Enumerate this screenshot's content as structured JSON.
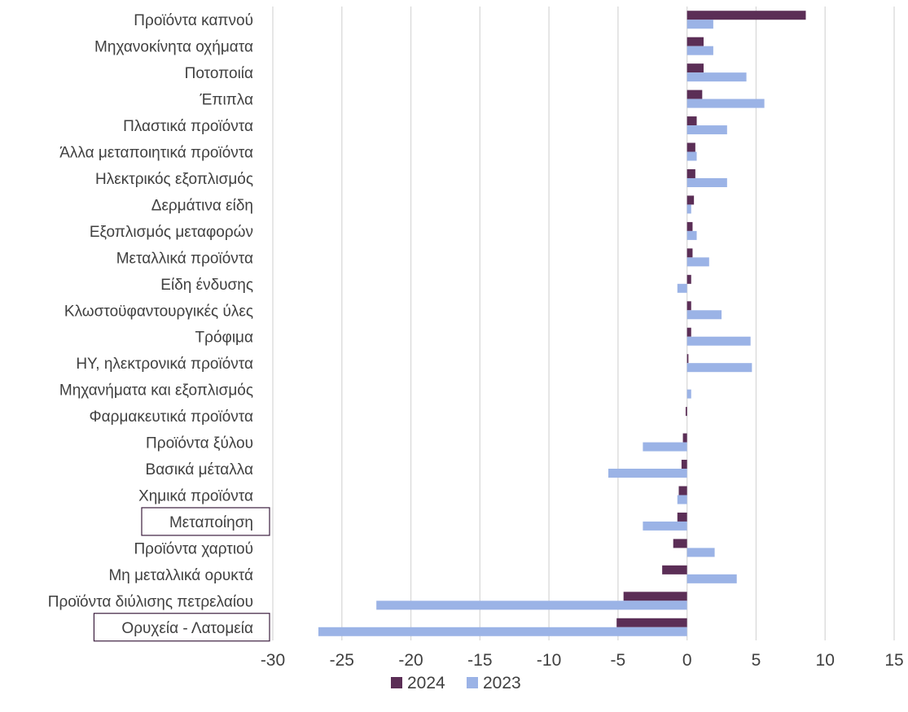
{
  "chart_data": {
    "type": "bar",
    "orientation": "horizontal",
    "categories": [
      "Προϊόντα καπνού",
      "Μηχανοκίνητα οχήματα",
      "Ποτοποιία",
      "Έπιπλα",
      "Πλαστικά προϊόντα",
      "Άλλα μεταποιητικά προϊόντα",
      "Ηλεκτρικός εξοπλισμός",
      "Δερμάτινα είδη",
      "Εξοπλισμός μεταφορών",
      "Μεταλλικά προϊόντα",
      "Είδη ένδυσης",
      "Κλωστοϋφαντουργικές ύλες",
      "Τρόφιμα",
      "ΗΥ, ηλεκτρονικά προϊόντα",
      "Μηχανήματα και εξοπλισμός",
      "Φαρμακευτικά προϊόντα",
      "Προϊόντα ξύλου",
      "Βασικά μέταλλα",
      "Χημικά προϊόντα",
      "Μεταποίηση",
      "Προϊόντα χαρτιού",
      "Μη μεταλλικά ορυκτά",
      "Προϊόντα διύλισης πετρελαίου",
      "Ορυχεία - Λατομεία"
    ],
    "highlighted_categories": [
      "Μεταποίηση",
      "Ορυχεία - Λατομεία"
    ],
    "series": [
      {
        "name": "2024",
        "color": "#5b2e56",
        "values": [
          8.6,
          1.2,
          1.2,
          1.1,
          0.7,
          0.6,
          0.6,
          0.5,
          0.4,
          0.4,
          0.3,
          0.3,
          0.3,
          0.1,
          0.0,
          -0.1,
          -0.3,
          -0.4,
          -0.6,
          -0.7,
          -1.0,
          -1.8,
          -4.6,
          -5.1
        ]
      },
      {
        "name": "2023",
        "color": "#9bb3e6",
        "values": [
          1.9,
          1.9,
          4.3,
          5.6,
          2.9,
          0.7,
          2.9,
          0.3,
          0.7,
          1.6,
          -0.7,
          2.5,
          4.6,
          4.7,
          0.3,
          0.0,
          -3.2,
          -5.7,
          -0.7,
          -3.2,
          2.0,
          3.6,
          -22.5,
          -26.7
        ]
      }
    ],
    "xlim": [
      -30,
      15
    ],
    "xticks": [
      "-30",
      "-25",
      "-20",
      "-15",
      "-10",
      "-5",
      "0",
      "5",
      "10",
      "15"
    ],
    "grid": true,
    "legend_position": "bottom"
  }
}
